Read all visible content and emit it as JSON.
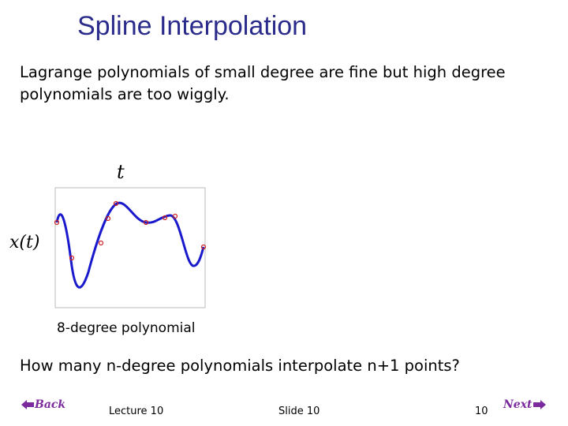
{
  "title": "Spline Interpolation",
  "body": "Lagrange polynomials of small degree are fine but high degree polynomials are too wiggly.",
  "figure": {
    "x_label": "t",
    "y_label": "x(t)",
    "caption": "8-degree polynomial"
  },
  "question": "How many n-degree polynomials interpolate n+1 points?",
  "footer": {
    "back": "Back",
    "lecture": "Lecture 10",
    "slide": "Slide 10",
    "page": "10",
    "next": "Next"
  }
}
